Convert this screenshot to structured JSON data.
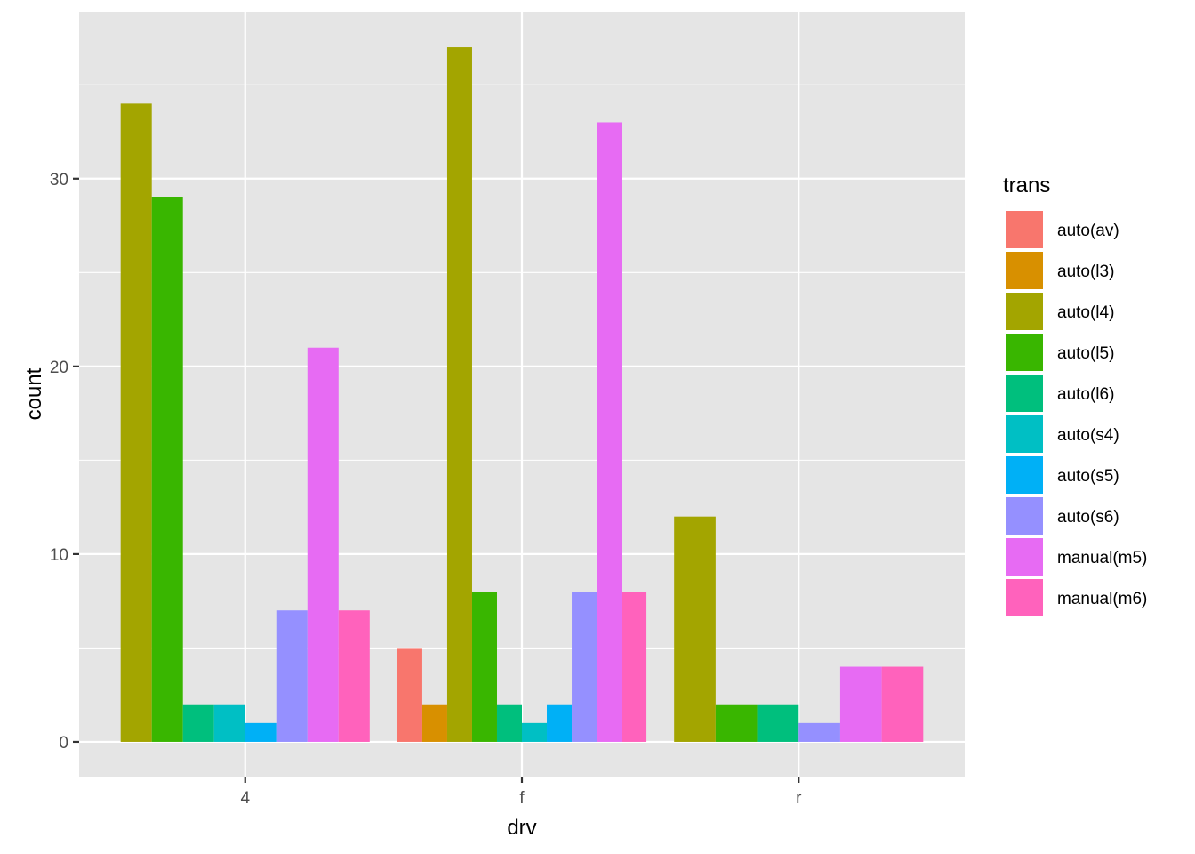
{
  "chart_data": {
    "type": "bar",
    "position": "dodge",
    "xlabel": "drv",
    "ylabel": "count",
    "categories": [
      "4",
      "f",
      "r"
    ],
    "yticks": [
      0,
      10,
      20,
      30
    ],
    "ylim": [
      -1.85,
      38.85
    ],
    "grid": true,
    "background_color": "#e5e5e5",
    "legend": {
      "title": "trans",
      "position": "right"
    },
    "series": [
      {
        "name": "auto(av)",
        "color": "#F8766D",
        "values": [
          null,
          5,
          null
        ]
      },
      {
        "name": "auto(l3)",
        "color": "#D89000",
        "values": [
          null,
          2,
          null
        ]
      },
      {
        "name": "auto(l4)",
        "color": "#A3A500",
        "values": [
          34,
          37,
          12
        ]
      },
      {
        "name": "auto(l5)",
        "color": "#39B600",
        "values": [
          29,
          8,
          2
        ]
      },
      {
        "name": "auto(l6)",
        "color": "#00BF7D",
        "values": [
          2,
          2,
          2
        ]
      },
      {
        "name": "auto(s4)",
        "color": "#00BFC4",
        "values": [
          2,
          1,
          null
        ]
      },
      {
        "name": "auto(s5)",
        "color": "#00B0F6",
        "values": [
          1,
          2,
          null
        ]
      },
      {
        "name": "auto(s6)",
        "color": "#9590FF",
        "values": [
          7,
          8,
          1
        ]
      },
      {
        "name": "manual(m5)",
        "color": "#E76BF3",
        "values": [
          21,
          33,
          4
        ]
      },
      {
        "name": "manual(m6)",
        "color": "#FF62BC",
        "values": [
          7,
          8,
          4
        ]
      }
    ]
  }
}
